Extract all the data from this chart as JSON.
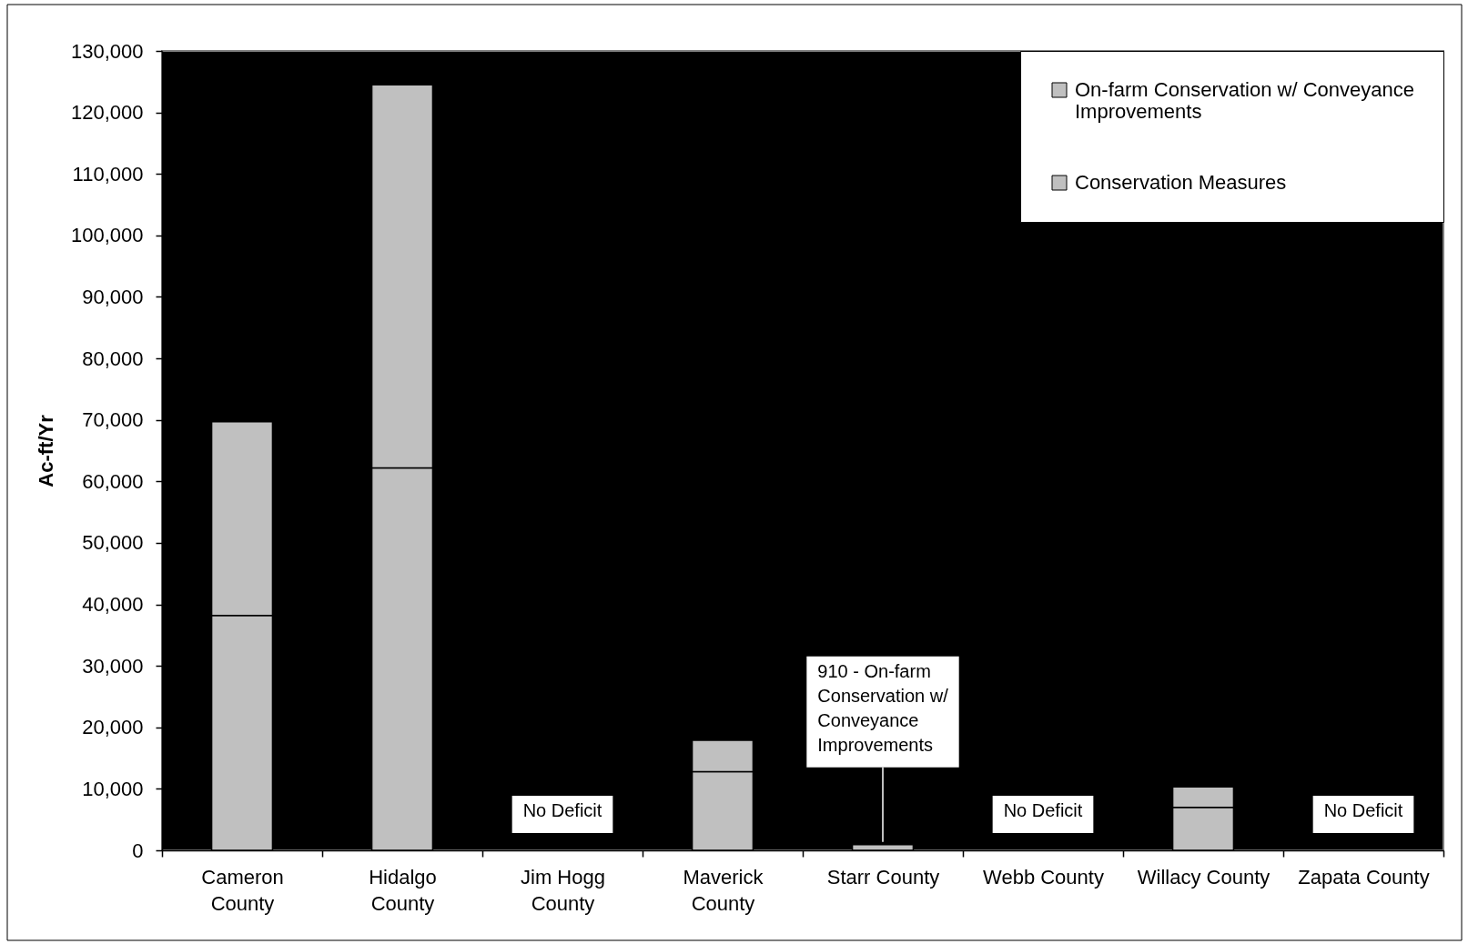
{
  "chart_data": {
    "type": "bar",
    "ylabel": "Ac-ft/Yr",
    "categories": [
      "Cameron County",
      "Hidalgo County",
      "Jim Hogg County",
      "Maverick County",
      "Starr County",
      "Webb County",
      "Willacy County",
      "Zapata County"
    ],
    "series": [
      {
        "name": "Conservation Measures",
        "color": "#c0c0c0",
        "values": [
          38200,
          62200,
          null,
          12800,
          null,
          null,
          7000,
          null
        ]
      },
      {
        "name": "On-farm Conservation w/ Conveyance Improvements",
        "color": "#c0c0c0",
        "values": [
          31500,
          62300,
          null,
          5100,
          910,
          null,
          3300,
          null
        ]
      }
    ],
    "stacked": true,
    "ylim": [
      0,
      130000
    ],
    "yticks": [
      0,
      {
        "value": 10000,
        "label": "10,000"
      },
      {
        "value": 20000,
        "label": "20,000"
      },
      {
        "value": 30000,
        "label": "30,000"
      },
      {
        "value": 40000,
        "label": "40,000"
      },
      {
        "value": 50000,
        "label": "50,000"
      },
      {
        "value": 60000,
        "label": "60,000"
      },
      {
        "value": 70000,
        "label": "70,000"
      },
      {
        "value": 80000,
        "label": "80,000"
      },
      {
        "value": 90000,
        "label": "90,000"
      },
      {
        "value": 100000,
        "label": "100,000"
      },
      {
        "value": 110000,
        "label": "110,000"
      },
      {
        "value": 120000,
        "label": "120,000"
      },
      {
        "value": 130000,
        "label": "130,000"
      }
    ],
    "grid": false,
    "legend": "top right",
    "annotations": [
      "No Deficit",
      {
        "text": "910 - On-farm Conservation w/ Conveyance Improvements",
        "x": "Starr County",
        "y": 910
      },
      "No Deficit",
      "No Deficit"
    ]
  }
}
